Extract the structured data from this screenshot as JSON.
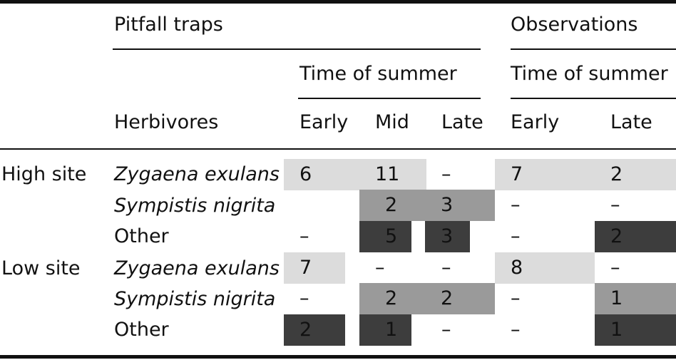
{
  "headers": {
    "pitfall": "Pitfall traps",
    "observations": "Observations",
    "time_pitfall": "Time of summer",
    "time_obs": "Time of summer",
    "herbivores": "Herbivores",
    "cols": [
      "Early",
      "Mid",
      "Late",
      "Early",
      "Late"
    ]
  },
  "rows": [
    {
      "site": "High site",
      "herbivore": "Zygaena exulans",
      "values": [
        "6",
        "11",
        "–",
        "7",
        "2"
      ]
    },
    {
      "site": "",
      "herbivore": "Sympistis nigrita",
      "values": [
        "",
        "2",
        "3",
        "–",
        "–"
      ]
    },
    {
      "site": "",
      "herbivore": "Other",
      "values": [
        "–",
        "5",
        "3",
        "–",
        "2"
      ]
    },
    {
      "site": "Low site",
      "herbivore": "Zygaena exulans",
      "values": [
        "7",
        "–",
        "–",
        "8",
        "–"
      ]
    },
    {
      "site": "",
      "herbivore": "Sympistis nigrita",
      "values": [
        "–",
        "2",
        "2",
        "–",
        "1"
      ]
    },
    {
      "site": "",
      "herbivore": "Other",
      "values": [
        "2",
        "1",
        "–",
        "–",
        "1"
      ]
    }
  ],
  "colors": {
    "light": "#dcdcdc",
    "mid": "#9a9a9a",
    "dark": "#3d3d3d"
  }
}
